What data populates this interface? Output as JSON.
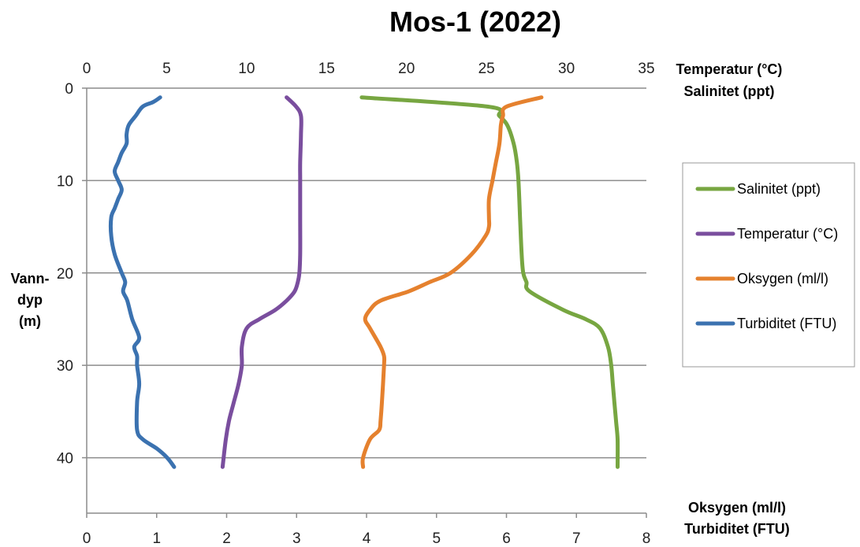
{
  "chart_data": {
    "type": "line",
    "title": "Mos-1 (2022)",
    "top_axis": {
      "label_lines": [
        "Temperatur (°C)",
        "Salinitet (ppt)"
      ],
      "range": [
        0,
        35
      ],
      "ticks": [
        "0",
        "5",
        "10",
        "15",
        "20",
        "25",
        "30",
        "35"
      ]
    },
    "bottom_axis": {
      "label_lines": [
        "Oksygen (ml/l)",
        "Turbiditet (FTU)"
      ],
      "range": [
        0,
        8
      ],
      "ticks": [
        "0",
        "1",
        "2",
        "3",
        "4",
        "5",
        "6",
        "7",
        "8"
      ]
    },
    "y_axis": {
      "label_lines": [
        "Vann-",
        "dyp",
        "(m)"
      ],
      "range": [
        0,
        46
      ],
      "inverted": true,
      "ticks": [
        "0",
        "10",
        "20",
        "30",
        "40"
      ],
      "tick_values": [
        0,
        10,
        20,
        30,
        40
      ]
    },
    "grid": "horizontal",
    "legend": "right",
    "series": [
      {
        "name": "Salinitet (ppt)",
        "axis": "top",
        "color": "#77a641",
        "x": [
          17.2,
          25.1,
          25.8,
          26.3,
          26.7,
          26.9,
          27.0,
          27.1,
          27.2,
          27.3,
          27.5,
          27.7,
          29.8,
          31.2,
          32.1,
          32.6,
          32.8,
          32.9,
          33.0,
          33.1,
          33.2,
          33.2
        ],
        "y": [
          1,
          2,
          3,
          4,
          6,
          8,
          10,
          14,
          18,
          20,
          21,
          22,
          24,
          25,
          26,
          28,
          30,
          32,
          34,
          36,
          38,
          41
        ]
      },
      {
        "name": "Temperatur (°C)",
        "axis": "top",
        "color": "#7a4e9e",
        "x": [
          12.5,
          13.1,
          13.4,
          13.4,
          13.35,
          13.35,
          13.35,
          13.35,
          13.3,
          13.2,
          13.0,
          12.5,
          11.8,
          10.8,
          10.0,
          9.7,
          9.7,
          9.5,
          9.2,
          8.9,
          8.7,
          8.5
        ],
        "y": [
          1,
          2,
          3,
          5,
          8,
          10,
          14,
          18,
          20,
          21,
          22,
          23,
          24,
          25,
          26,
          28,
          30,
          32,
          34,
          36,
          38,
          41
        ]
      },
      {
        "name": "Oksygen (ml/l)",
        "axis": "bottom",
        "color": "#e5812e",
        "x": [
          6.5,
          6.0,
          5.95,
          5.92,
          5.9,
          5.85,
          5.8,
          5.75,
          5.75,
          5.75,
          5.7,
          5.5,
          5.2,
          4.9,
          4.6,
          4.2,
          4.05,
          3.98,
          4.05,
          4.2,
          4.25,
          4.25,
          4.22,
          4.2,
          4.18,
          4.05,
          3.95,
          3.95
        ],
        "y": [
          1,
          2,
          3,
          4,
          6,
          8,
          10,
          12,
          14,
          15,
          16,
          18,
          20,
          21,
          22,
          23,
          24,
          25,
          26,
          28,
          29,
          30,
          34,
          36,
          37,
          38,
          40,
          41
        ]
      },
      {
        "name": "Turbiditet (FTU)",
        "axis": "bottom",
        "color": "#3b72b0",
        "x": [
          1.05,
          0.95,
          0.8,
          0.7,
          0.6,
          0.57,
          0.57,
          0.5,
          0.45,
          0.4,
          0.45,
          0.5,
          0.45,
          0.4,
          0.35,
          0.35,
          0.4,
          0.5,
          0.55,
          0.52,
          0.58,
          0.65,
          0.75,
          0.68,
          0.72,
          0.72,
          0.75,
          0.72,
          0.72,
          0.8,
          1.0,
          1.15,
          1.25
        ],
        "y": [
          1,
          1.5,
          2,
          3,
          4,
          5,
          6,
          7,
          8,
          9,
          10,
          11,
          12,
          13,
          14,
          16,
          18,
          20,
          21,
          22,
          23,
          25,
          27,
          28,
          29,
          30,
          32,
          34,
          37,
          38,
          39,
          40,
          41
        ]
      }
    ]
  }
}
